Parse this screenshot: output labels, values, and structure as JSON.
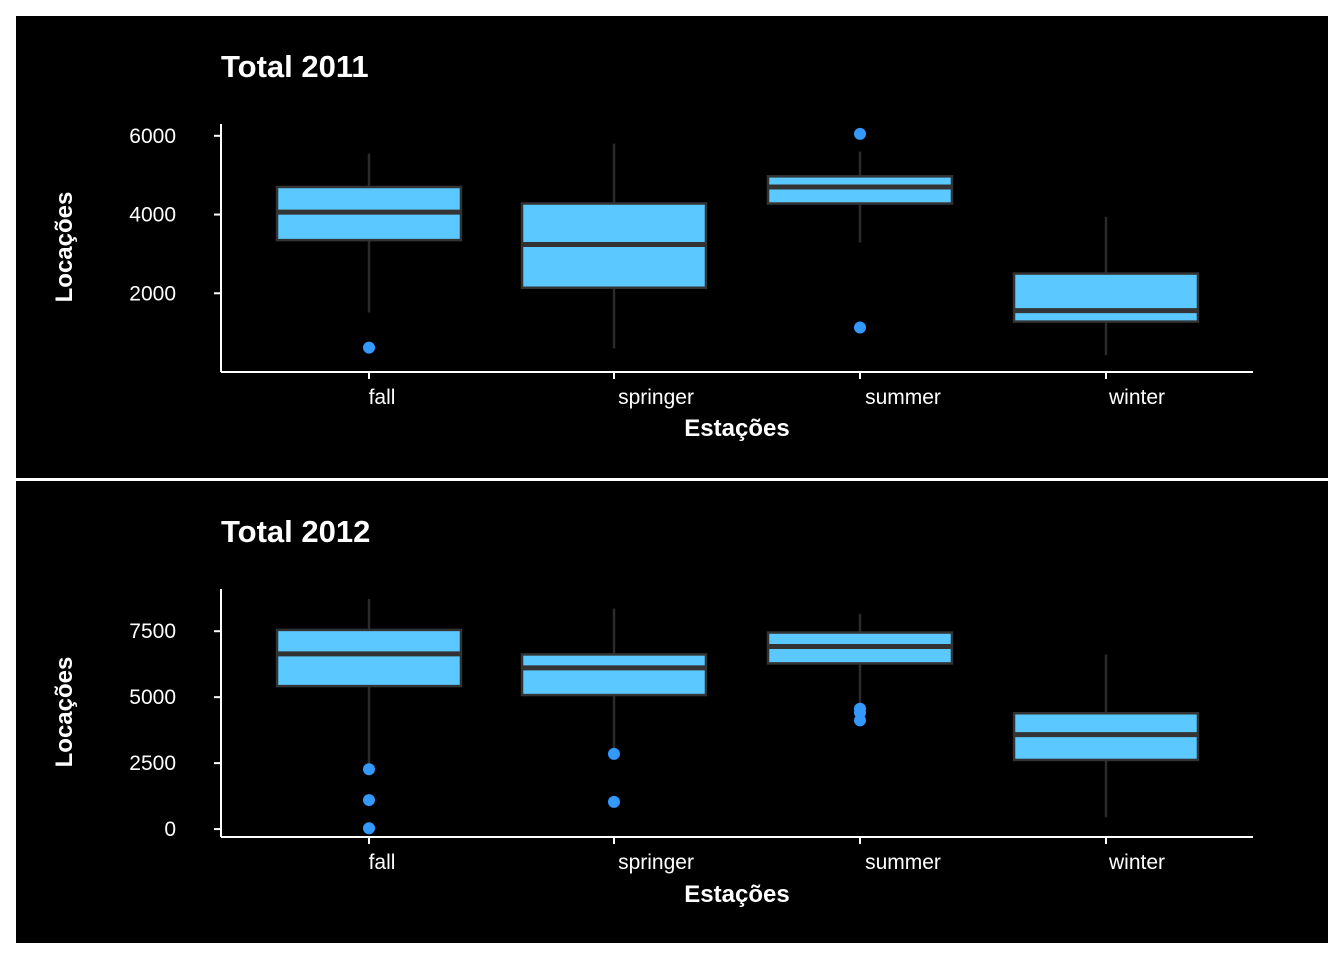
{
  "colors": {
    "page_background": "#ffffff",
    "panel_background": "#000000",
    "box_fill": "#5bc8ff",
    "box_stroke": "#333333",
    "whisker": "#2b2b2b",
    "outlier": "#3399ff",
    "text": "#ffffff",
    "separator": "#ffffff"
  },
  "chart_data": [
    {
      "type": "boxplot",
      "title": "Total 2011",
      "xlabel": "Estações",
      "ylabel": "Locações",
      "categories": [
        "fall",
        "springer",
        "summer",
        "winter"
      ],
      "yticks": [
        2000,
        4000,
        6000
      ],
      "ytick_labels": [
        "2000",
        "4000",
        "6000"
      ],
      "ylim": [
        0,
        6300
      ],
      "grid": false,
      "legend": "none",
      "boxes": [
        {
          "category": "fall",
          "whisker_low": 1510,
          "q1": 3350,
          "median": 4060,
          "q3": 4700,
          "whisker_high": 5550,
          "outliers": [
            620
          ]
        },
        {
          "category": "springer",
          "whisker_low": 600,
          "q1": 2140,
          "median": 3240,
          "q3": 4280,
          "whisker_high": 5800,
          "outliers": []
        },
        {
          "category": "summer",
          "whisker_low": 3290,
          "q1": 4280,
          "median": 4700,
          "q3": 4970,
          "whisker_high": 5600,
          "outliers": [
            6050,
            1130
          ]
        },
        {
          "category": "winter",
          "whisker_low": 430,
          "q1": 1280,
          "median": 1560,
          "q3": 2500,
          "whisker_high": 3940,
          "outliers": []
        }
      ]
    },
    {
      "type": "boxplot",
      "title": "Total 2012",
      "xlabel": "Estações",
      "ylabel": "Locações",
      "categories": [
        "fall",
        "springer",
        "summer",
        "winter"
      ],
      "yticks": [
        0,
        2500,
        5000,
        7500
      ],
      "ytick_labels": [
        "0",
        "2500",
        "5000",
        "7500"
      ],
      "ylim": [
        -300,
        9100
      ],
      "grid": false,
      "legend": "none",
      "boxes": [
        {
          "category": "fall",
          "whisker_low": 2420,
          "q1": 5420,
          "median": 6640,
          "q3": 7550,
          "whisker_high": 8720,
          "outliers": [
            2270,
            1100,
            30
          ]
        },
        {
          "category": "springer",
          "whisker_low": 2950,
          "q1": 5080,
          "median": 6110,
          "q3": 6620,
          "whisker_high": 8360,
          "outliers": [
            2850,
            1030
          ]
        },
        {
          "category": "summer",
          "whisker_low": 4760,
          "q1": 6280,
          "median": 6920,
          "q3": 7450,
          "whisker_high": 8150,
          "outliers": [
            4560,
            4420,
            4120
          ]
        },
        {
          "category": "winter",
          "whisker_low": 450,
          "q1": 2620,
          "median": 3580,
          "q3": 4390,
          "whisker_high": 6620,
          "outliers": []
        }
      ]
    }
  ]
}
